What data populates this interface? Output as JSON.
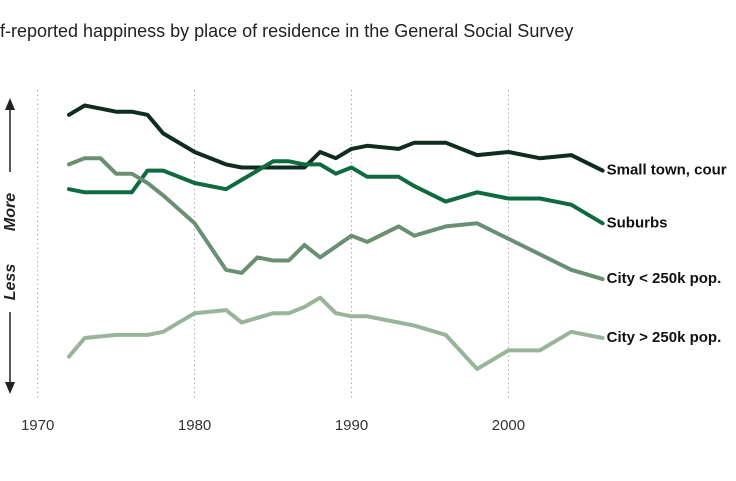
{
  "chart_data": {
    "type": "line",
    "subtitle": "f-reported happiness by place of residence in the General Social Survey",
    "y_label_top": "More",
    "y_label_bottom": "Less",
    "xlim": [
      1967.6,
      2014.5
    ],
    "xticks": [
      1970,
      1980,
      1990,
      2000
    ],
    "ylim": [
      0,
      100
    ],
    "grid": true,
    "series": [
      {
        "name": "Small town, cour",
        "color": "#0f2d1f",
        "x": [
          1972,
          1973,
          1974,
          1975,
          1976,
          1977,
          1978,
          1980,
          1982,
          1983,
          1984,
          1986,
          1987,
          1988,
          1989,
          1990,
          1991,
          1993,
          1994,
          1996,
          1998,
          2000,
          2002,
          2004,
          2006
        ],
        "values": [
          92,
          95,
          94,
          93,
          93,
          92,
          86,
          80,
          76,
          75,
          75,
          75,
          75,
          80,
          78,
          81,
          82,
          81,
          83,
          83,
          79,
          80,
          78,
          79,
          74
        ]
      },
      {
        "name": "Suburbs",
        "color": "#0f6b3f",
        "x": [
          1972,
          1973,
          1976,
          1977,
          1978,
          1980,
          1982,
          1983,
          1984,
          1985,
          1986,
          1987,
          1988,
          1989,
          1990,
          1991,
          1993,
          1994,
          1996,
          1998,
          2000,
          2002,
          2004,
          2006
        ],
        "values": [
          68,
          67,
          67,
          74,
          74,
          70,
          68,
          71,
          74,
          77,
          77,
          76,
          76,
          73,
          75,
          72,
          72,
          69,
          64,
          67,
          65,
          65,
          63,
          57
        ]
      },
      {
        "name": "City < 250k pop.",
        "color": "#6b8f73",
        "x": [
          1972,
          1973,
          1974,
          1975,
          1976,
          1977,
          1978,
          1980,
          1982,
          1983,
          1984,
          1985,
          1986,
          1987,
          1988,
          1990,
          1991,
          1993,
          1994,
          1996,
          1998,
          2000,
          2004,
          2006
        ],
        "values": [
          76,
          78,
          78,
          73,
          73,
          70,
          66,
          57,
          42,
          41,
          46,
          45,
          45,
          50,
          46,
          53,
          51,
          56,
          53,
          56,
          57,
          52,
          42,
          39
        ]
      },
      {
        "name": "City > 250k pop.",
        "color": "#98b59c",
        "x": [
          1972,
          1973,
          1975,
          1977,
          1978,
          1980,
          1982,
          1983,
          1985,
          1986,
          1987,
          1988,
          1989,
          1990,
          1991,
          1993,
          1994,
          1996,
          1998,
          2000,
          2002,
          2004,
          2006
        ],
        "values": [
          14,
          20,
          21,
          21,
          22,
          28,
          29,
          25,
          28,
          28,
          30,
          33,
          28,
          27,
          27,
          25,
          24,
          21,
          10,
          16,
          16,
          22,
          20
        ]
      }
    ]
  }
}
